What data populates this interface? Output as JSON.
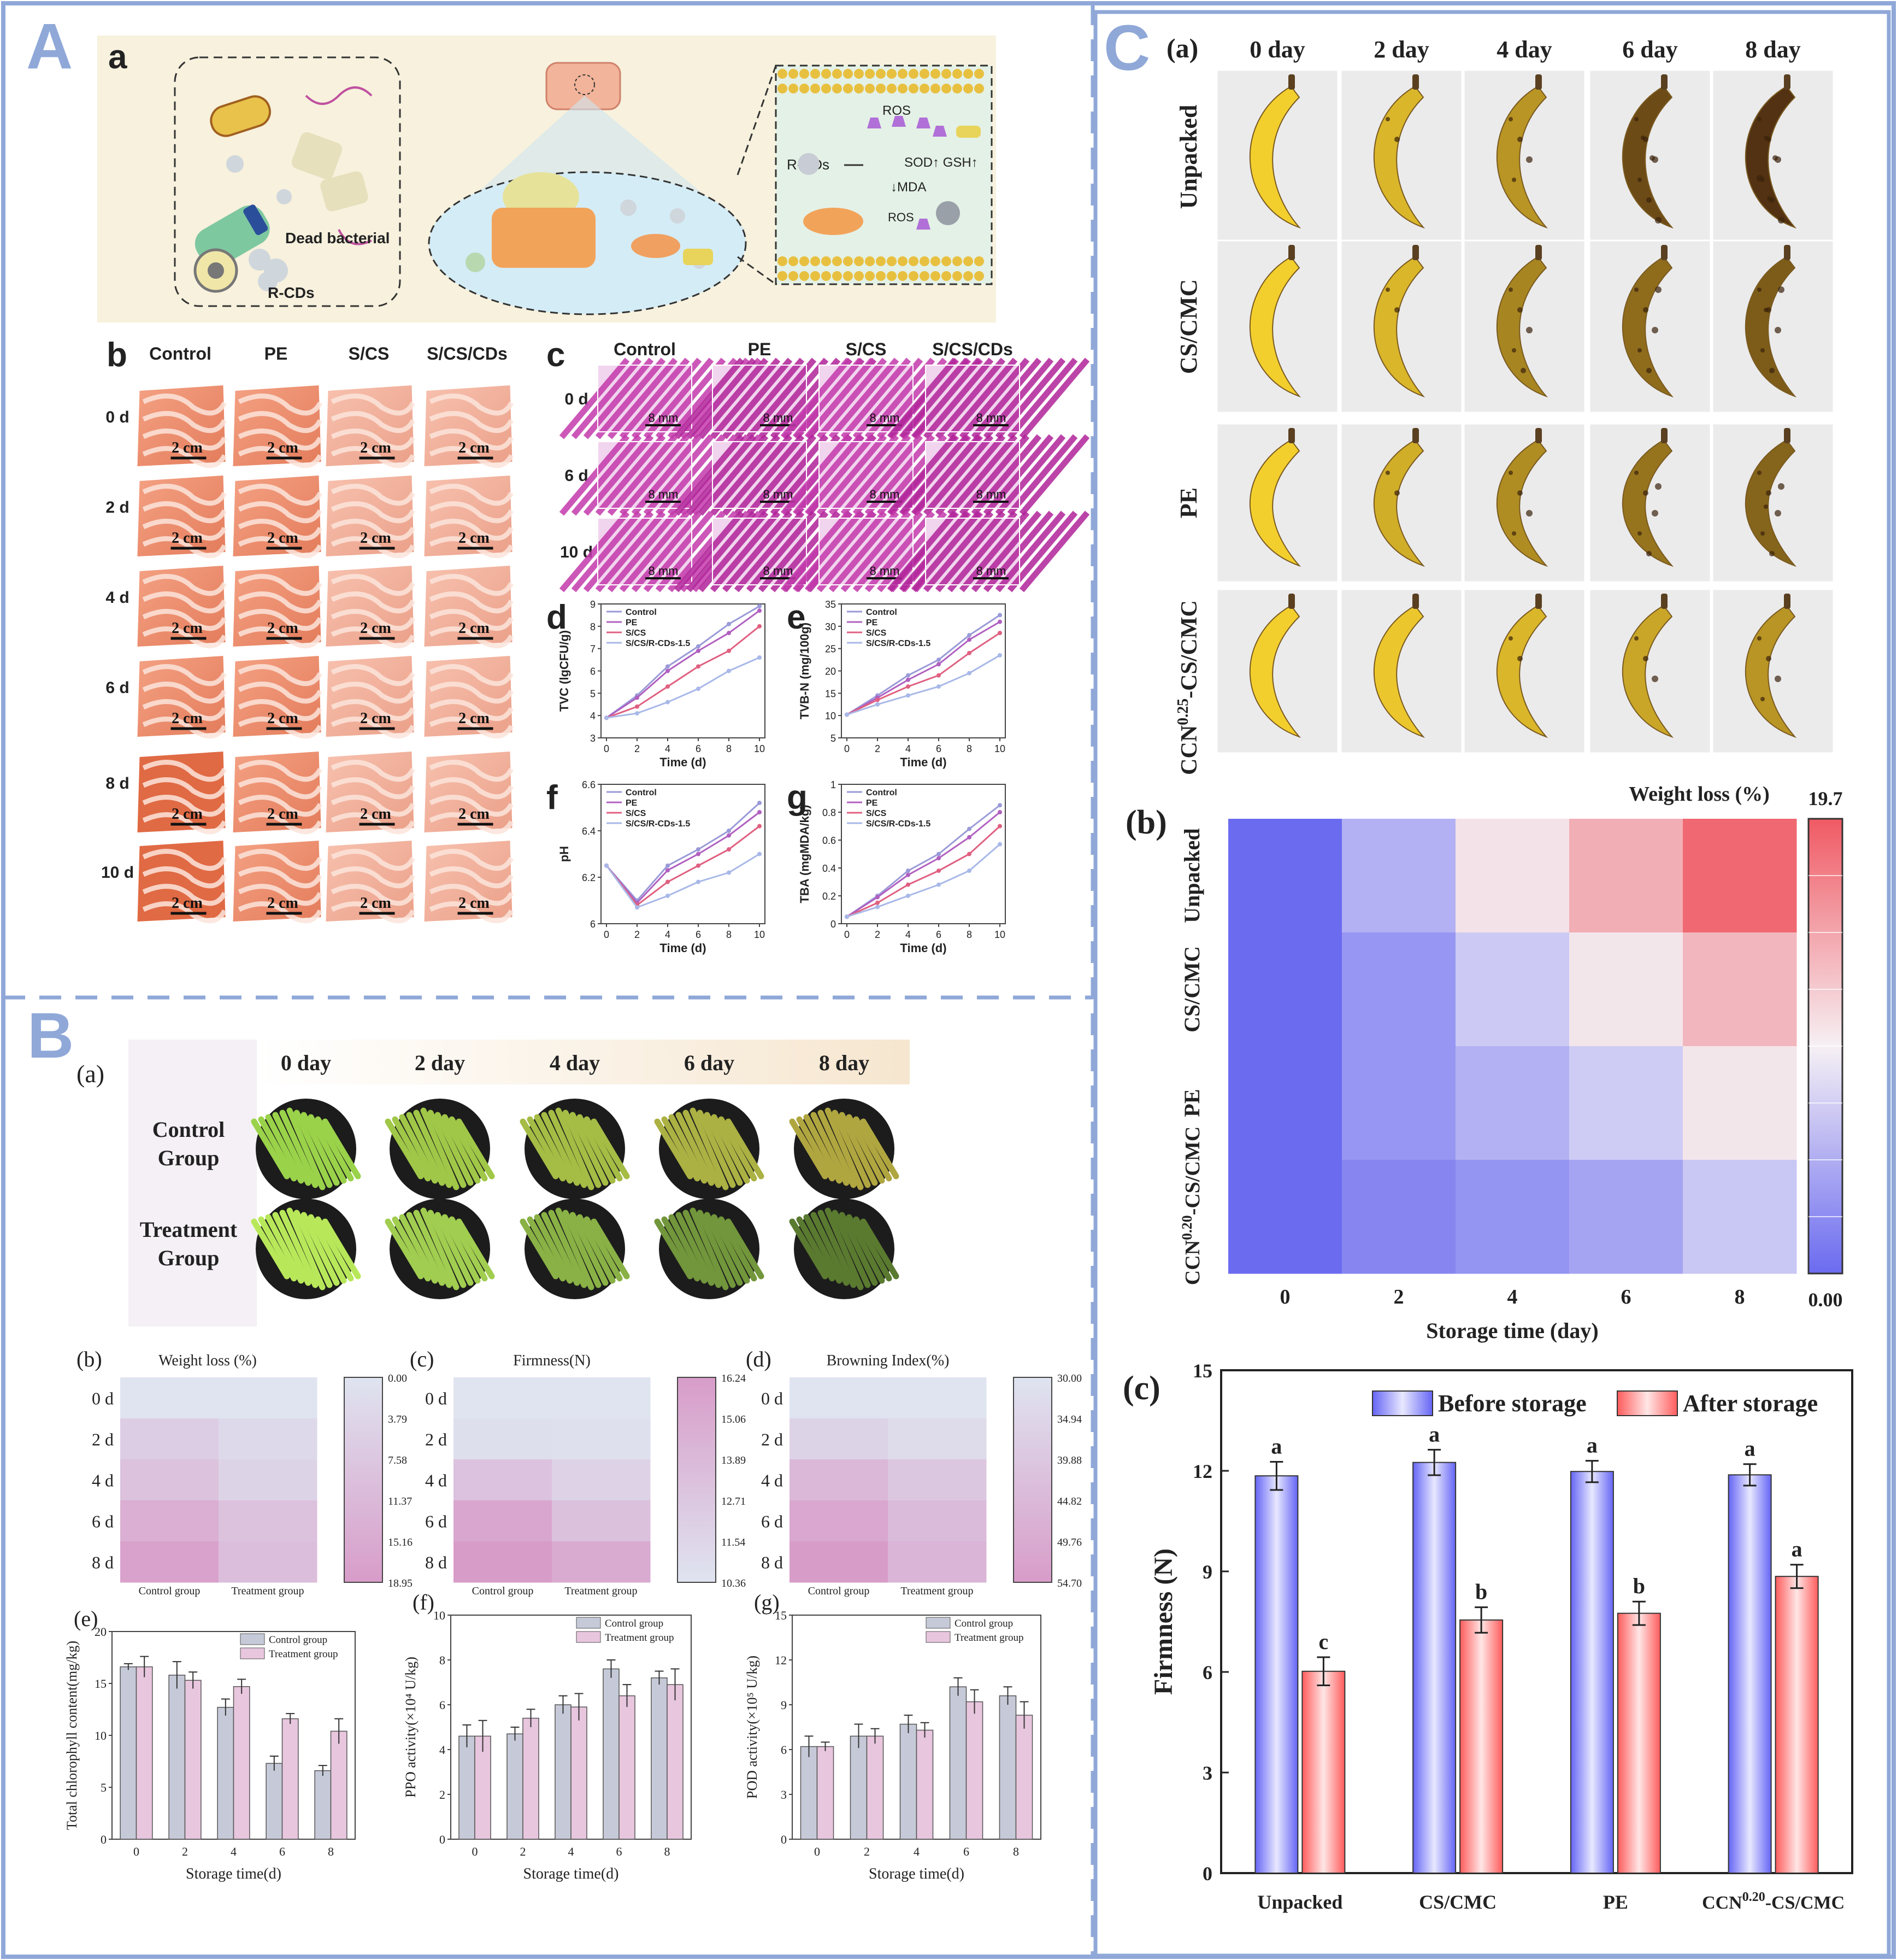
{
  "panels": {
    "A": {
      "letter": "A",
      "a": {
        "label": "a",
        "dead_bacterial": "Dead bacterial",
        "rcds": "R-CDs",
        "rcds_arrow": "R-CDs",
        "ros_top": "ROS",
        "sod_gsh": "SOD↑ GSH↑",
        "mda": "↓MDA",
        "ros_bottom": "ROS"
      },
      "b": {
        "label": "b",
        "columns": [
          "Control",
          "PE",
          "S/CS",
          "S/CS/CDs"
        ],
        "rows": [
          "0 d",
          "2 d",
          "4 d",
          "6 d",
          "8 d",
          "10 d"
        ],
        "scale": "2 cm"
      },
      "c": {
        "label": "c",
        "columns": [
          "Control",
          "PE",
          "S/CS",
          "S/CS/CDs"
        ],
        "rows": [
          "0 d",
          "6 d",
          "10 d"
        ],
        "scale": "8 mm"
      },
      "small_charts": [
        {
          "label": "d",
          "type": "line",
          "ylabel": "TVC (lgCFU/g)",
          "xlabel": "Time (d)",
          "x": [
            0,
            2,
            4,
            6,
            8,
            10
          ],
          "ylim": [
            3,
            9
          ],
          "yticks": [
            3,
            4,
            5,
            6,
            7,
            8,
            9
          ],
          "series": [
            {
              "name": "Control",
              "values": [
                3.9,
                4.9,
                6.2,
                7.1,
                8.1,
                8.9
              ],
              "color": "#9a9ad8"
            },
            {
              "name": "PE",
              "values": [
                3.9,
                4.8,
                6.0,
                6.9,
                7.7,
                8.7
              ],
              "color": "#b060c0"
            },
            {
              "name": "S/CS",
              "values": [
                3.9,
                4.4,
                5.3,
                6.2,
                6.9,
                8.0
              ],
              "color": "#e06080"
            },
            {
              "name": "S/CS/R-CDs-1.5",
              "values": [
                3.9,
                4.1,
                4.6,
                5.2,
                6.0,
                6.6
              ],
              "color": "#a8b8e8"
            }
          ]
        },
        {
          "label": "e",
          "type": "line",
          "ylabel": "TVB-N (mg/100g)",
          "xlabel": "Time (d)",
          "x": [
            0,
            2,
            4,
            6,
            8,
            10
          ],
          "ylim": [
            5,
            35
          ],
          "yticks": [
            5,
            10,
            15,
            20,
            25,
            30,
            35
          ],
          "series": [
            {
              "name": "Control",
              "values": [
                10.2,
                14.5,
                19.0,
                22.5,
                28.0,
                32.5
              ],
              "color": "#9a9ad8"
            },
            {
              "name": "PE",
              "values": [
                10.2,
                14.0,
                18.0,
                21.5,
                27.0,
                31.0
              ],
              "color": "#b060c0"
            },
            {
              "name": "S/CS",
              "values": [
                10.2,
                13.5,
                16.5,
                19.0,
                24.0,
                28.5
              ],
              "color": "#e06080"
            },
            {
              "name": "S/CS/R-CDs-1.5",
              "values": [
                10.2,
                12.5,
                14.5,
                16.5,
                19.5,
                23.5
              ],
              "color": "#a8b8e8"
            }
          ]
        },
        {
          "label": "f",
          "type": "line",
          "ylabel": "pH",
          "xlabel": "Time (d)",
          "x": [
            0,
            2,
            4,
            6,
            8,
            10
          ],
          "ylim": [
            6.0,
            6.6
          ],
          "yticks": [
            6.0,
            6.2,
            6.4,
            6.6
          ],
          "series": [
            {
              "name": "Control",
              "values": [
                6.25,
                6.1,
                6.25,
                6.32,
                6.4,
                6.52
              ],
              "color": "#9a9ad8"
            },
            {
              "name": "PE",
              "values": [
                6.25,
                6.09,
                6.23,
                6.3,
                6.38,
                6.48
              ],
              "color": "#b060c0"
            },
            {
              "name": "S/CS",
              "values": [
                6.25,
                6.08,
                6.18,
                6.25,
                6.32,
                6.42
              ],
              "color": "#e06080"
            },
            {
              "name": "S/CS/R-CDs-1.5",
              "values": [
                6.25,
                6.07,
                6.12,
                6.18,
                6.22,
                6.3
              ],
              "color": "#a8b8e8"
            }
          ]
        },
        {
          "label": "g",
          "type": "line",
          "ylabel": "TBA (mgMDA/kg)",
          "xlabel": "Time (d)",
          "x": [
            0,
            2,
            4,
            6,
            8,
            10
          ],
          "ylim": [
            0,
            1.0
          ],
          "yticks": [
            0,
            0.2,
            0.4,
            0.6,
            0.8,
            1.0
          ],
          "series": [
            {
              "name": "Control",
              "values": [
                0.05,
                0.2,
                0.38,
                0.5,
                0.68,
                0.85
              ],
              "color": "#9a9ad8"
            },
            {
              "name": "PE",
              "values": [
                0.05,
                0.19,
                0.35,
                0.47,
                0.62,
                0.8
              ],
              "color": "#b060c0"
            },
            {
              "name": "S/CS",
              "values": [
                0.05,
                0.15,
                0.28,
                0.38,
                0.5,
                0.7
              ],
              "color": "#e06080"
            },
            {
              "name": "S/CS/R-CDs-1.5",
              "values": [
                0.05,
                0.12,
                0.2,
                0.28,
                0.38,
                0.57
              ],
              "color": "#a8b8e8"
            }
          ]
        }
      ]
    },
    "B": {
      "letter": "B",
      "a": {
        "label": "(a)",
        "days": [
          "0 day",
          "2 day",
          "4 day",
          "6 day",
          "8 day"
        ],
        "groups": [
          [
            "Control",
            "Group"
          ],
          [
            "Treatment",
            "Group"
          ]
        ]
      },
      "heatmaps": [
        {
          "label": "(b)",
          "title": "Weight loss (%)",
          "rows": [
            "0 d",
            "2 d",
            "4 d",
            "6 d",
            "8 d"
          ],
          "cols": [
            "Control group",
            "Treatment group"
          ],
          "scale": [
            "0.00",
            "3.79",
            "7.58",
            "11.37",
            "15.16",
            "18.95"
          ],
          "range": [
            0,
            18.95
          ],
          "values": [
            [
              0,
              0
            ],
            [
              6,
              3
            ],
            [
              9,
              4.5
            ],
            [
              14,
              9
            ],
            [
              17.5,
              10
            ]
          ]
        },
        {
          "label": "(c)",
          "title": "Firmness(N)",
          "rows": [
            "0 d",
            "2 d",
            "4 d",
            "6 d",
            "8 d"
          ],
          "cols": [
            "Control group",
            "Treatment group"
          ],
          "scale": [
            "16.24",
            "15.06",
            "13.89",
            "12.71",
            "11.54",
            "10.36"
          ],
          "range": [
            10.36,
            16.24
          ],
          "values": [
            [
              16.24,
              16.24
            ],
            [
              15.8,
              15.9
            ],
            [
              13.5,
              14.8
            ],
            [
              11.2,
              13.4
            ],
            [
              10.36,
              11.6
            ]
          ]
        },
        {
          "label": "(d)",
          "title": "Browning Index(%)",
          "rows": [
            "0 d",
            "2 d",
            "4 d",
            "6 d",
            "8 d"
          ],
          "cols": [
            "Control group",
            "Treatment group"
          ],
          "scale": [
            "30.00",
            "34.94",
            "39.88",
            "44.82",
            "49.76",
            "54.70"
          ],
          "range": [
            30,
            54.7
          ],
          "values": [
            [
              30,
              30
            ],
            [
              36,
              33
            ],
            [
              45,
              40
            ],
            [
              51,
              44
            ],
            [
              54.7,
              46
            ]
          ]
        }
      ],
      "bars": [
        {
          "label": "(e)",
          "ylabel": "Total chlorophyll content(mg/kg)",
          "xlabel": "Storage time(d)",
          "categories": [
            "0",
            "2",
            "4",
            "6",
            "8"
          ],
          "ylim": [
            0,
            20
          ],
          "yticks": [
            0,
            5,
            10,
            15,
            20
          ],
          "legend": [
            "Control group",
            "Treatment group"
          ],
          "series": [
            [
              16.6,
              15.8,
              12.7,
              7.3,
              6.6
            ],
            [
              16.6,
              15.3,
              14.7,
              11.6,
              10.4
            ]
          ],
          "errors": [
            [
              0.3,
              1.3,
              0.8,
              0.7,
              0.5
            ],
            [
              1.0,
              0.8,
              0.7,
              0.5,
              1.2
            ]
          ]
        },
        {
          "label": "(f)",
          "ylabel": "PPO activity(×10⁴ U/kg)",
          "xlabel": "Storage time(d)",
          "categories": [
            "0",
            "2",
            "4",
            "6",
            "8"
          ],
          "ylim": [
            0,
            10
          ],
          "yticks": [
            0,
            2,
            4,
            6,
            8,
            10
          ],
          "legend": [
            "Control group",
            "Treatment group"
          ],
          "series": [
            [
              4.6,
              4.7,
              6.0,
              7.6,
              7.2
            ],
            [
              4.6,
              5.4,
              5.9,
              6.4,
              6.9
            ]
          ],
          "errors": [
            [
              0.5,
              0.3,
              0.4,
              0.4,
              0.3
            ],
            [
              0.7,
              0.4,
              0.6,
              0.5,
              0.7
            ]
          ]
        },
        {
          "label": "(g)",
          "ylabel": "POD activity(×10⁵ U/kg)",
          "xlabel": "Storage time(d)",
          "categories": [
            "0",
            "2",
            "4",
            "6",
            "8"
          ],
          "ylim": [
            0,
            15
          ],
          "yticks": [
            0,
            3,
            6,
            9,
            12,
            15
          ],
          "legend": [
            "Control group",
            "Treatment group"
          ],
          "series": [
            [
              6.2,
              6.9,
              7.7,
              10.2,
              9.6
            ],
            [
              6.2,
              6.9,
              7.3,
              9.2,
              8.3
            ]
          ],
          "errors": [
            [
              0.7,
              0.8,
              0.6,
              0.6,
              0.6
            ],
            [
              0.3,
              0.5,
              0.5,
              0.8,
              0.9
            ]
          ]
        }
      ]
    },
    "C": {
      "letter": "C",
      "a": {
        "label": "(a)",
        "days": [
          "0 day",
          "2 day",
          "4 day",
          "6 day",
          "8 day"
        ],
        "rows": [
          "Unpacked",
          "CS/CMC",
          "PE",
          "CCN0.25-CS/CMC"
        ],
        "row4_base": "CCN",
        "row4_sup": "0.25",
        "row4_tail": "-CS/CMC"
      },
      "b": {
        "label": "(b)",
        "title": "Weight loss (%)",
        "scale_max": "19.7",
        "scale_min": "0.00",
        "xlabel": "Storage time (day)",
        "xticks": [
          "0",
          "2",
          "4",
          "6",
          "8"
        ],
        "rows": [
          "Unpacked",
          "CS/CMC",
          "PE",
          "CCN0.20-CS/CMC"
        ],
        "row4_base": "CCN",
        "row4_sup": "0.20",
        "row4_tail": "-CS/CMC",
        "range": [
          0,
          19.7
        ],
        "values": [
          [
            0,
            5.2,
            10.8,
            14.2,
            18.8
          ],
          [
            0,
            3.2,
            7.0,
            10.5,
            13.6
          ],
          [
            0,
            3.2,
            5.2,
            7.2,
            10.5
          ],
          [
            0,
            2.0,
            3.0,
            4.2,
            6.8
          ]
        ]
      },
      "c": {
        "label": "(c)",
        "type": "bar",
        "ylabel": "Firmness (N)",
        "categories": [
          "Unpacked",
          "CS/CMC",
          "PE",
          "CCN0.20-CS/CMC"
        ],
        "cat4_base": "CCN",
        "cat4_sup": "0.20",
        "cat4_tail": "-CS/CMC",
        "ylim": [
          0,
          15
        ],
        "yticks": [
          0,
          3,
          6,
          9,
          12,
          15
        ],
        "series": [
          {
            "name": "Before storage",
            "values": [
              11.85,
              12.25,
              11.98,
              11.88
            ],
            "errors": [
              0.42,
              0.38,
              0.32,
              0.32
            ],
            "letters": [
              "a",
              "a",
              "a",
              "a"
            ]
          },
          {
            "name": "After storage",
            "values": [
              6.02,
              7.55,
              7.75,
              8.85
            ],
            "errors": [
              0.42,
              0.38,
              0.35,
              0.35
            ],
            "letters": [
              "c",
              "b",
              "b",
              "a"
            ]
          }
        ]
      }
    }
  },
  "colors": {
    "frame": "#8fa8d8",
    "blue_hm": "#6b6bf0",
    "red_hm": "#f05a64",
    "before_bar": "#7c7cff",
    "after_bar": "#ff6f6f"
  }
}
